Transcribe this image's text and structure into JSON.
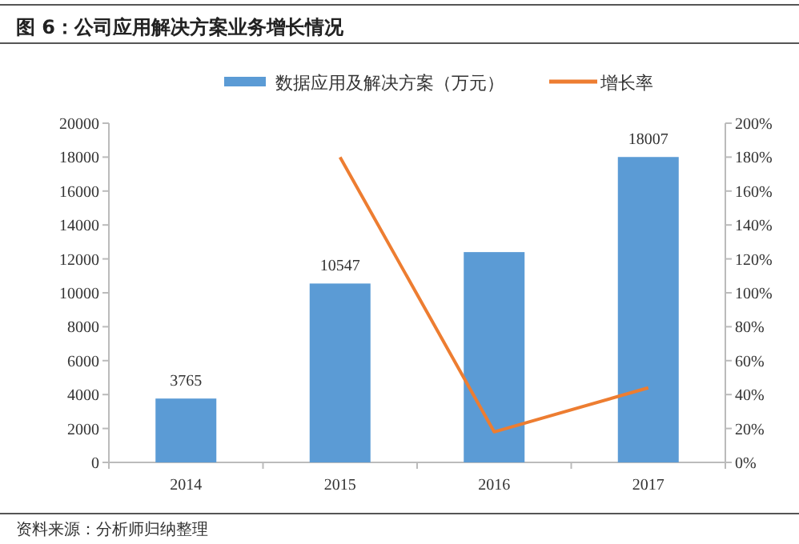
{
  "chart_data": {
    "type": "bar",
    "title": "图 6：公司应用解决方案业务增长情况",
    "categories": [
      "2014",
      "2015",
      "2016",
      "2017"
    ],
    "series": [
      {
        "name": "数据应用及解决方案（万元）",
        "color": "#5b9bd5",
        "values": [
          3765,
          10547,
          12400,
          18007
        ],
        "value_labels": [
          "3765",
          "10547",
          null,
          "18007"
        ]
      },
      {
        "name": "增长率",
        "type": "line",
        "axis": "y2",
        "color": "#ed7d31",
        "values": [
          null,
          180,
          18,
          44
        ]
      }
    ],
    "ylim": [
      0,
      20000
    ],
    "yticks": [
      0,
      2000,
      4000,
      6000,
      8000,
      10000,
      12000,
      14000,
      16000,
      18000,
      20000
    ],
    "y2lim": [
      0,
      200
    ],
    "y2ticks": [
      {
        "value": 0,
        "label": "0%"
      },
      {
        "value": 20,
        "label": "20%"
      },
      {
        "value": 40,
        "label": "40%"
      },
      {
        "value": 60,
        "label": "60%"
      },
      {
        "value": 80,
        "label": "80%"
      },
      {
        "value": 100,
        "label": "100%"
      },
      {
        "value": 120,
        "label": "120%"
      },
      {
        "value": 140,
        "label": "140%"
      },
      {
        "value": 160,
        "label": "160%"
      },
      {
        "value": 180,
        "label": "180%"
      },
      {
        "value": 200,
        "label": "200%"
      }
    ],
    "grid": false,
    "legend": "top",
    "marker": "none",
    "line_style": "solid",
    "annotations": [
      "资料来源：分析师归纳整理"
    ]
  }
}
